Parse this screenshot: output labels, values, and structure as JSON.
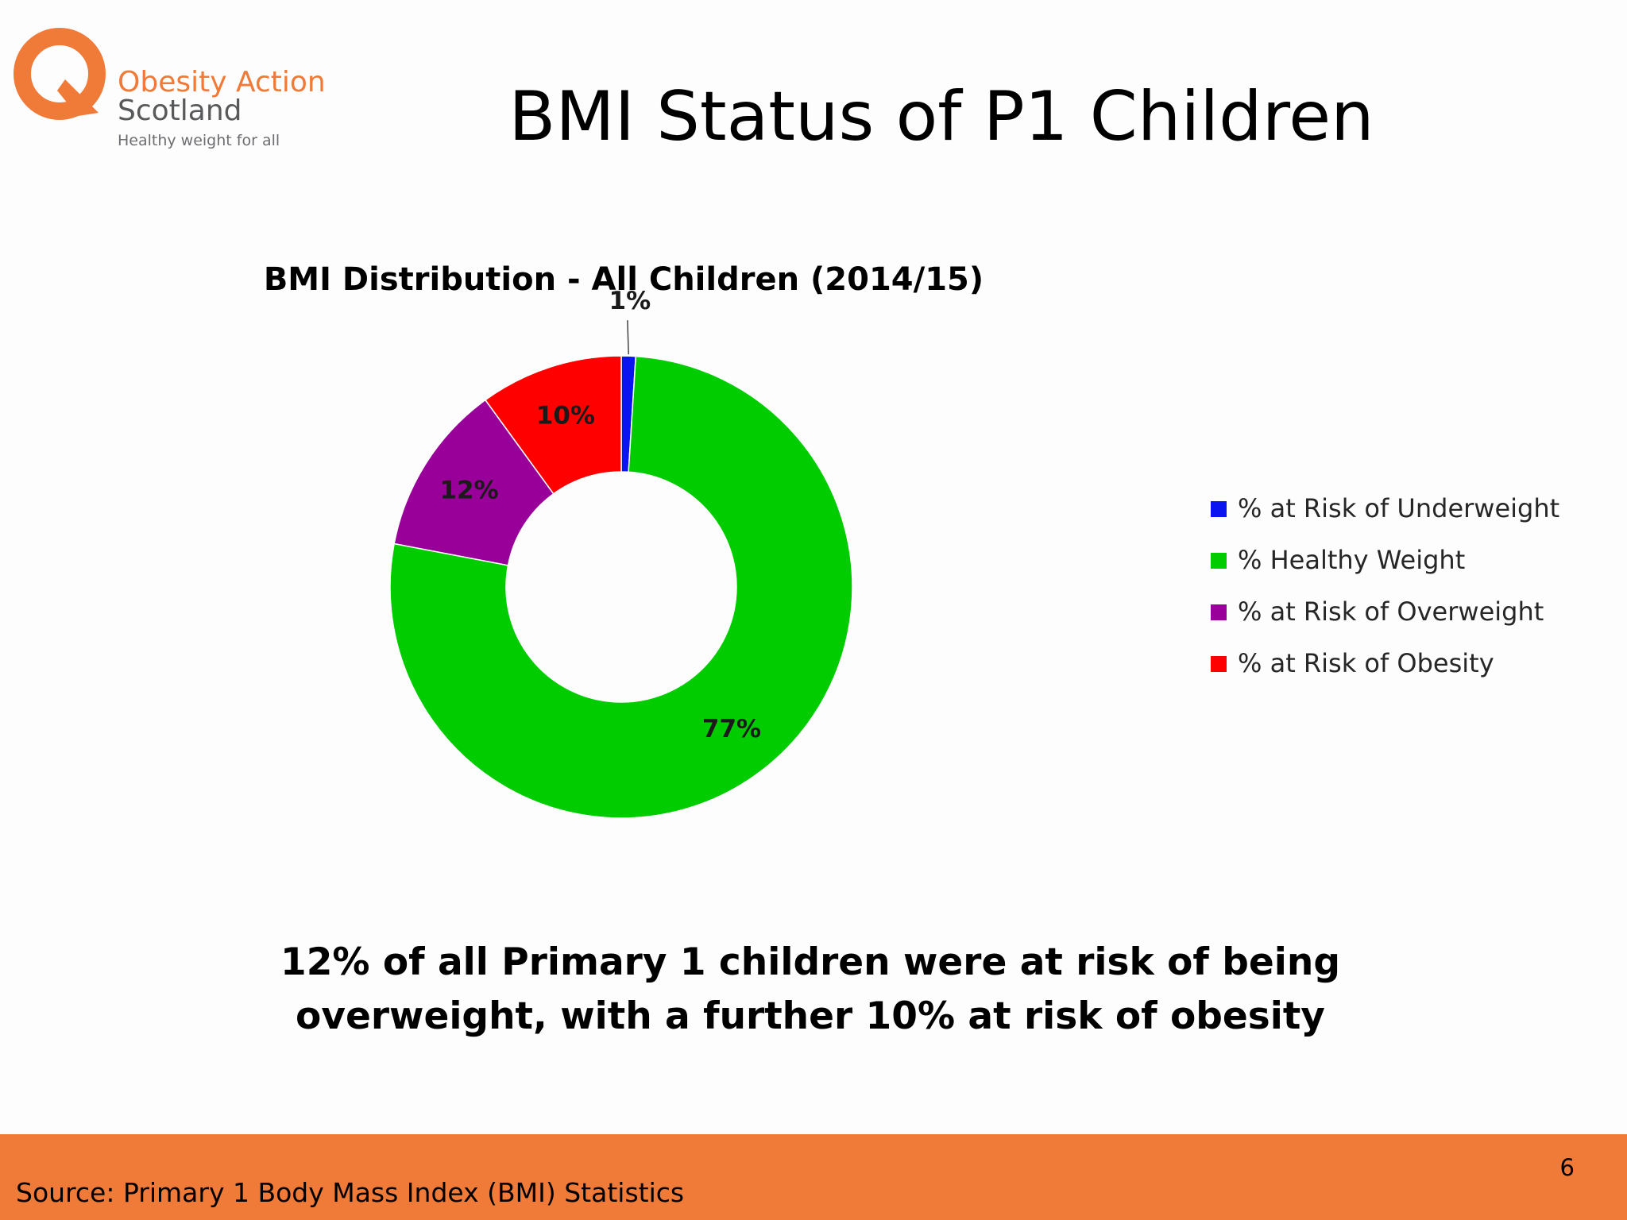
{
  "logo": {
    "name_line1": "Obesity Action",
    "name_line2": "Scotland",
    "tagline": "Healthy weight for all",
    "brand_color": "#f07a38",
    "text_color": "#58595b"
  },
  "slide": {
    "title": "BMI Status of P1 Children",
    "statement": "12% of all Primary 1 children were at risk of being overweight, with a further 10% at risk of obesity",
    "page_number": "6",
    "source": "Source: Primary 1 Body Mass Index (BMI) Statistics",
    "footer_color": "#f07a38"
  },
  "chart_data": {
    "type": "pie",
    "donut": true,
    "title": "BMI Distribution - All Children (2014/15)",
    "legend_position": "right",
    "categories": [
      "% at Risk of Underweight",
      "% Healthy Weight",
      "% at Risk of Overweight",
      "% at Risk of Obesity"
    ],
    "values": [
      1,
      77,
      12,
      10
    ],
    "labels": [
      "1%",
      "77%",
      "12%",
      "10%"
    ],
    "colors": [
      "#0a14f0",
      "#00cc00",
      "#990099",
      "#ff0000"
    ]
  }
}
